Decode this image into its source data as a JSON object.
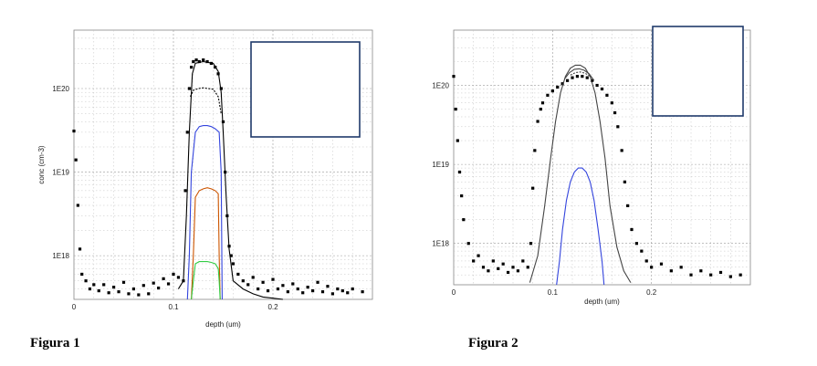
{
  "chart_data": [
    {
      "type": "line",
      "caption": "Figura 1",
      "xlabel": "depth (um)",
      "ylabel": "conc (cm-3)",
      "x_ticks": [
        "0",
        "0.1",
        "0.2"
      ],
      "y_ticks": [
        "1E18",
        "1E19",
        "1E20"
      ],
      "xlim": [
        0,
        0.3
      ],
      "ylim": [
        3e+17,
        5e+20
      ],
      "y_scale": "log",
      "grid": true,
      "legend_box": "top-right, empty",
      "series": [
        {
          "color": "#000000",
          "style": "points",
          "x": [
            0.0,
            0.002,
            0.004,
            0.006,
            0.008,
            0.012,
            0.016,
            0.02,
            0.025,
            0.03,
            0.035,
            0.04,
            0.045,
            0.05,
            0.055,
            0.06,
            0.065,
            0.07,
            0.075,
            0.08,
            0.085,
            0.09,
            0.095,
            0.1,
            0.105,
            0.11,
            0.112,
            0.114,
            0.116,
            0.118,
            0.12,
            0.123,
            0.126,
            0.13,
            0.134,
            0.138,
            0.142,
            0.145,
            0.148,
            0.15,
            0.152,
            0.154,
            0.156,
            0.158,
            0.16,
            0.165,
            0.17,
            0.175,
            0.18,
            0.185,
            0.19,
            0.195,
            0.2,
            0.205,
            0.21,
            0.215,
            0.22,
            0.225,
            0.23,
            0.235,
            0.24,
            0.245,
            0.25,
            0.255,
            0.26,
            0.265,
            0.27,
            0.275,
            0.28,
            0.29
          ],
          "y": [
            3.1e+19,
            1.4e+19,
            4e+18,
            1.2e+18,
            6e+17,
            5e+17,
            4e+17,
            4.5e+17,
            3.8e+17,
            4.5e+17,
            3.6e+17,
            4.2e+17,
            3.7e+17,
            4.8e+17,
            3.5e+17,
            4e+17,
            3.4e+17,
            4.4e+17,
            3.5e+17,
            4.7e+17,
            4.1e+17,
            5.3e+17,
            4.6e+17,
            6e+17,
            5.5e+17,
            5e+17,
            6e+18,
            3e+19,
            1e+20,
            1.8e+20,
            2.1e+20,
            2.2e+20,
            2.1e+20,
            2.2e+20,
            2.1e+20,
            2e+20,
            1.8e+20,
            1.5e+20,
            1e+20,
            4e+19,
            1e+19,
            3e+18,
            1.3e+18,
            1e+18,
            8e+17,
            6e+17,
            5e+17,
            4.5e+17,
            5.5e+17,
            4e+17,
            4.8e+17,
            3.8e+17,
            5.2e+17,
            4e+17,
            4.4e+17,
            3.7e+17,
            4.6e+17,
            4e+17,
            3.6e+17,
            4.2e+17,
            3.8e+17,
            4.8e+17,
            3.7e+17,
            4.3e+17,
            3.5e+17,
            4e+17,
            3.8e+17,
            3.6e+17,
            4e+17,
            3.7e+17
          ]
        },
        {
          "color": "#000000",
          "style": "solid",
          "x": [
            0.105,
            0.11,
            0.113,
            0.116,
            0.119,
            0.122,
            0.13,
            0.14,
            0.145,
            0.148,
            0.15,
            0.153,
            0.156,
            0.16,
            0.17,
            0.18,
            0.19,
            0.2,
            0.21
          ],
          "y": [
            4e+17,
            5e+17,
            3e+18,
            3e+19,
            1.5e+20,
            2e+20,
            2.1e+20,
            2e+20,
            1.6e+20,
            9e+19,
            3e+19,
            5e+18,
            1.2e+18,
            5e+17,
            4e+17,
            3.5e+17,
            3.2e+17,
            3.1e+17,
            3e+17
          ]
        },
        {
          "color": "#000000",
          "style": "dashed",
          "x": [
            0.117,
            0.12,
            0.125,
            0.13,
            0.135,
            0.14,
            0.145,
            0.148
          ],
          "y": [
            8e+19,
            9.5e+19,
            1e+20,
            1.02e+20,
            1e+20,
            9.8e+19,
            8e+19,
            5e+19
          ]
        },
        {
          "color": "#3344dd",
          "style": "solid",
          "x": [
            0.114,
            0.116,
            0.118,
            0.122,
            0.126,
            0.13,
            0.134,
            0.138,
            0.142,
            0.146,
            0.148,
            0.149
          ],
          "y": [
            3e+17,
            1e+18,
            1e+19,
            3e+19,
            3.5e+19,
            3.6e+19,
            3.6e+19,
            3.5e+19,
            3.3e+19,
            3e+19,
            1e+19,
            3e+17
          ]
        },
        {
          "color": "#cc5500",
          "style": "solid",
          "x": [
            0.118,
            0.12,
            0.122,
            0.126,
            0.13,
            0.134,
            0.138,
            0.142,
            0.145,
            0.146,
            0.147
          ],
          "y": [
            3e+17,
            1e+18,
            5e+18,
            6e+18,
            6.3e+18,
            6.5e+18,
            6.3e+18,
            6e+18,
            5.5e+18,
            1e+18,
            3e+17
          ]
        },
        {
          "color": "#33cc44",
          "style": "solid",
          "x": [
            0.118,
            0.12,
            0.122,
            0.126,
            0.13,
            0.134,
            0.138,
            0.142,
            0.145,
            0.146,
            0.147
          ],
          "y": [
            3e+17,
            5e+17,
            8e+17,
            8.5e+17,
            8.5e+17,
            8.5e+17,
            8.3e+17,
            8e+17,
            7e+17,
            5e+17,
            3e+17
          ]
        }
      ]
    },
    {
      "type": "line",
      "caption": "Figura 2",
      "xlabel": "depth (um)",
      "ylabel": "",
      "x_ticks": [
        "0",
        "0.1",
        "0.2"
      ],
      "y_ticks": [
        "1E18",
        "1E19",
        "1E20"
      ],
      "xlim": [
        0,
        0.3
      ],
      "ylim": [
        3e+17,
        5e+20
      ],
      "y_scale": "log",
      "grid": true,
      "legend_box": "top-right, empty",
      "series": [
        {
          "color": "#000000",
          "style": "points",
          "x": [
            0.0,
            0.002,
            0.004,
            0.006,
            0.008,
            0.01,
            0.015,
            0.02,
            0.025,
            0.03,
            0.035,
            0.04,
            0.045,
            0.05,
            0.055,
            0.06,
            0.065,
            0.07,
            0.075,
            0.078,
            0.08,
            0.082,
            0.085,
            0.088,
            0.09,
            0.095,
            0.1,
            0.105,
            0.11,
            0.115,
            0.12,
            0.125,
            0.13,
            0.135,
            0.14,
            0.145,
            0.15,
            0.155,
            0.16,
            0.163,
            0.166,
            0.17,
            0.173,
            0.176,
            0.18,
            0.185,
            0.19,
            0.195,
            0.2,
            0.21,
            0.22,
            0.23,
            0.24,
            0.25,
            0.26,
            0.27,
            0.28,
            0.29
          ],
          "y": [
            1.3e+20,
            5e+19,
            2e+19,
            8e+18,
            4e+18,
            2e+18,
            1e+18,
            6e+17,
            7e+17,
            5e+17,
            4.5e+17,
            6e+17,
            4.8e+17,
            5.5e+17,
            4.3e+17,
            5e+17,
            4.5e+17,
            6e+17,
            5e+17,
            1e+18,
            5e+18,
            1.5e+19,
            3.5e+19,
            5e+19,
            6e+19,
            7.5e+19,
            8.5e+19,
            9.5e+19,
            1.05e+20,
            1.15e+20,
            1.25e+20,
            1.3e+20,
            1.3e+20,
            1.25e+20,
            1.15e+20,
            1e+20,
            9e+19,
            7.5e+19,
            6e+19,
            4.5e+19,
            3e+19,
            1.5e+19,
            6e+18,
            3e+18,
            1.5e+18,
            1e+18,
            8e+17,
            6e+17,
            5e+17,
            5.5e+17,
            4.5e+17,
            5e+17,
            4e+17,
            4.5e+17,
            4e+17,
            4.3e+17,
            3.8e+17,
            4e+17
          ]
        },
        {
          "color": "#444444",
          "style": "solid",
          "x": [
            0.077,
            0.085,
            0.092,
            0.098,
            0.103,
            0.108,
            0.113,
            0.118,
            0.123,
            0.128,
            0.133,
            0.138,
            0.143,
            0.148,
            0.153,
            0.158,
            0.165,
            0.172,
            0.179
          ],
          "y": [
            3.2e+17,
            7e+17,
            3e+18,
            1.2e+19,
            3.5e+19,
            8e+19,
            1.3e+20,
            1.65e+20,
            1.8e+20,
            1.8e+20,
            1.65e+20,
            1.3e+20,
            8e+19,
            3.5e+19,
            1.2e+19,
            3e+18,
            9e+17,
            4.5e+17,
            3.2e+17
          ]
        },
        {
          "color": "#444444",
          "style": "solid",
          "x": [
            0.112,
            0.117,
            0.122,
            0.127,
            0.132,
            0.137,
            0.142
          ],
          "y": [
            1.2e+20,
            1.45e+20,
            1.6e+20,
            1.62e+20,
            1.55e+20,
            1.4e+20,
            1.15e+20
          ]
        },
        {
          "color": "#444444",
          "style": "dashed",
          "x": [
            0.118,
            0.123,
            0.128,
            0.133,
            0.138
          ],
          "y": [
            1.35e+20,
            1.45e+20,
            1.48e+20,
            1.42e+20,
            1.3e+20
          ]
        },
        {
          "color": "#3344dd",
          "style": "solid",
          "x": [
            0.104,
            0.107,
            0.11,
            0.114,
            0.118,
            0.122,
            0.126,
            0.13,
            0.134,
            0.138,
            0.142,
            0.146,
            0.15,
            0.152
          ],
          "y": [
            3e+17,
            6e+17,
            1.5e+18,
            3.5e+18,
            6e+18,
            8e+18,
            9e+18,
            9e+18,
            8e+18,
            6e+18,
            3.5e+18,
            1.5e+18,
            6e+17,
            3e+17
          ]
        }
      ]
    }
  ]
}
